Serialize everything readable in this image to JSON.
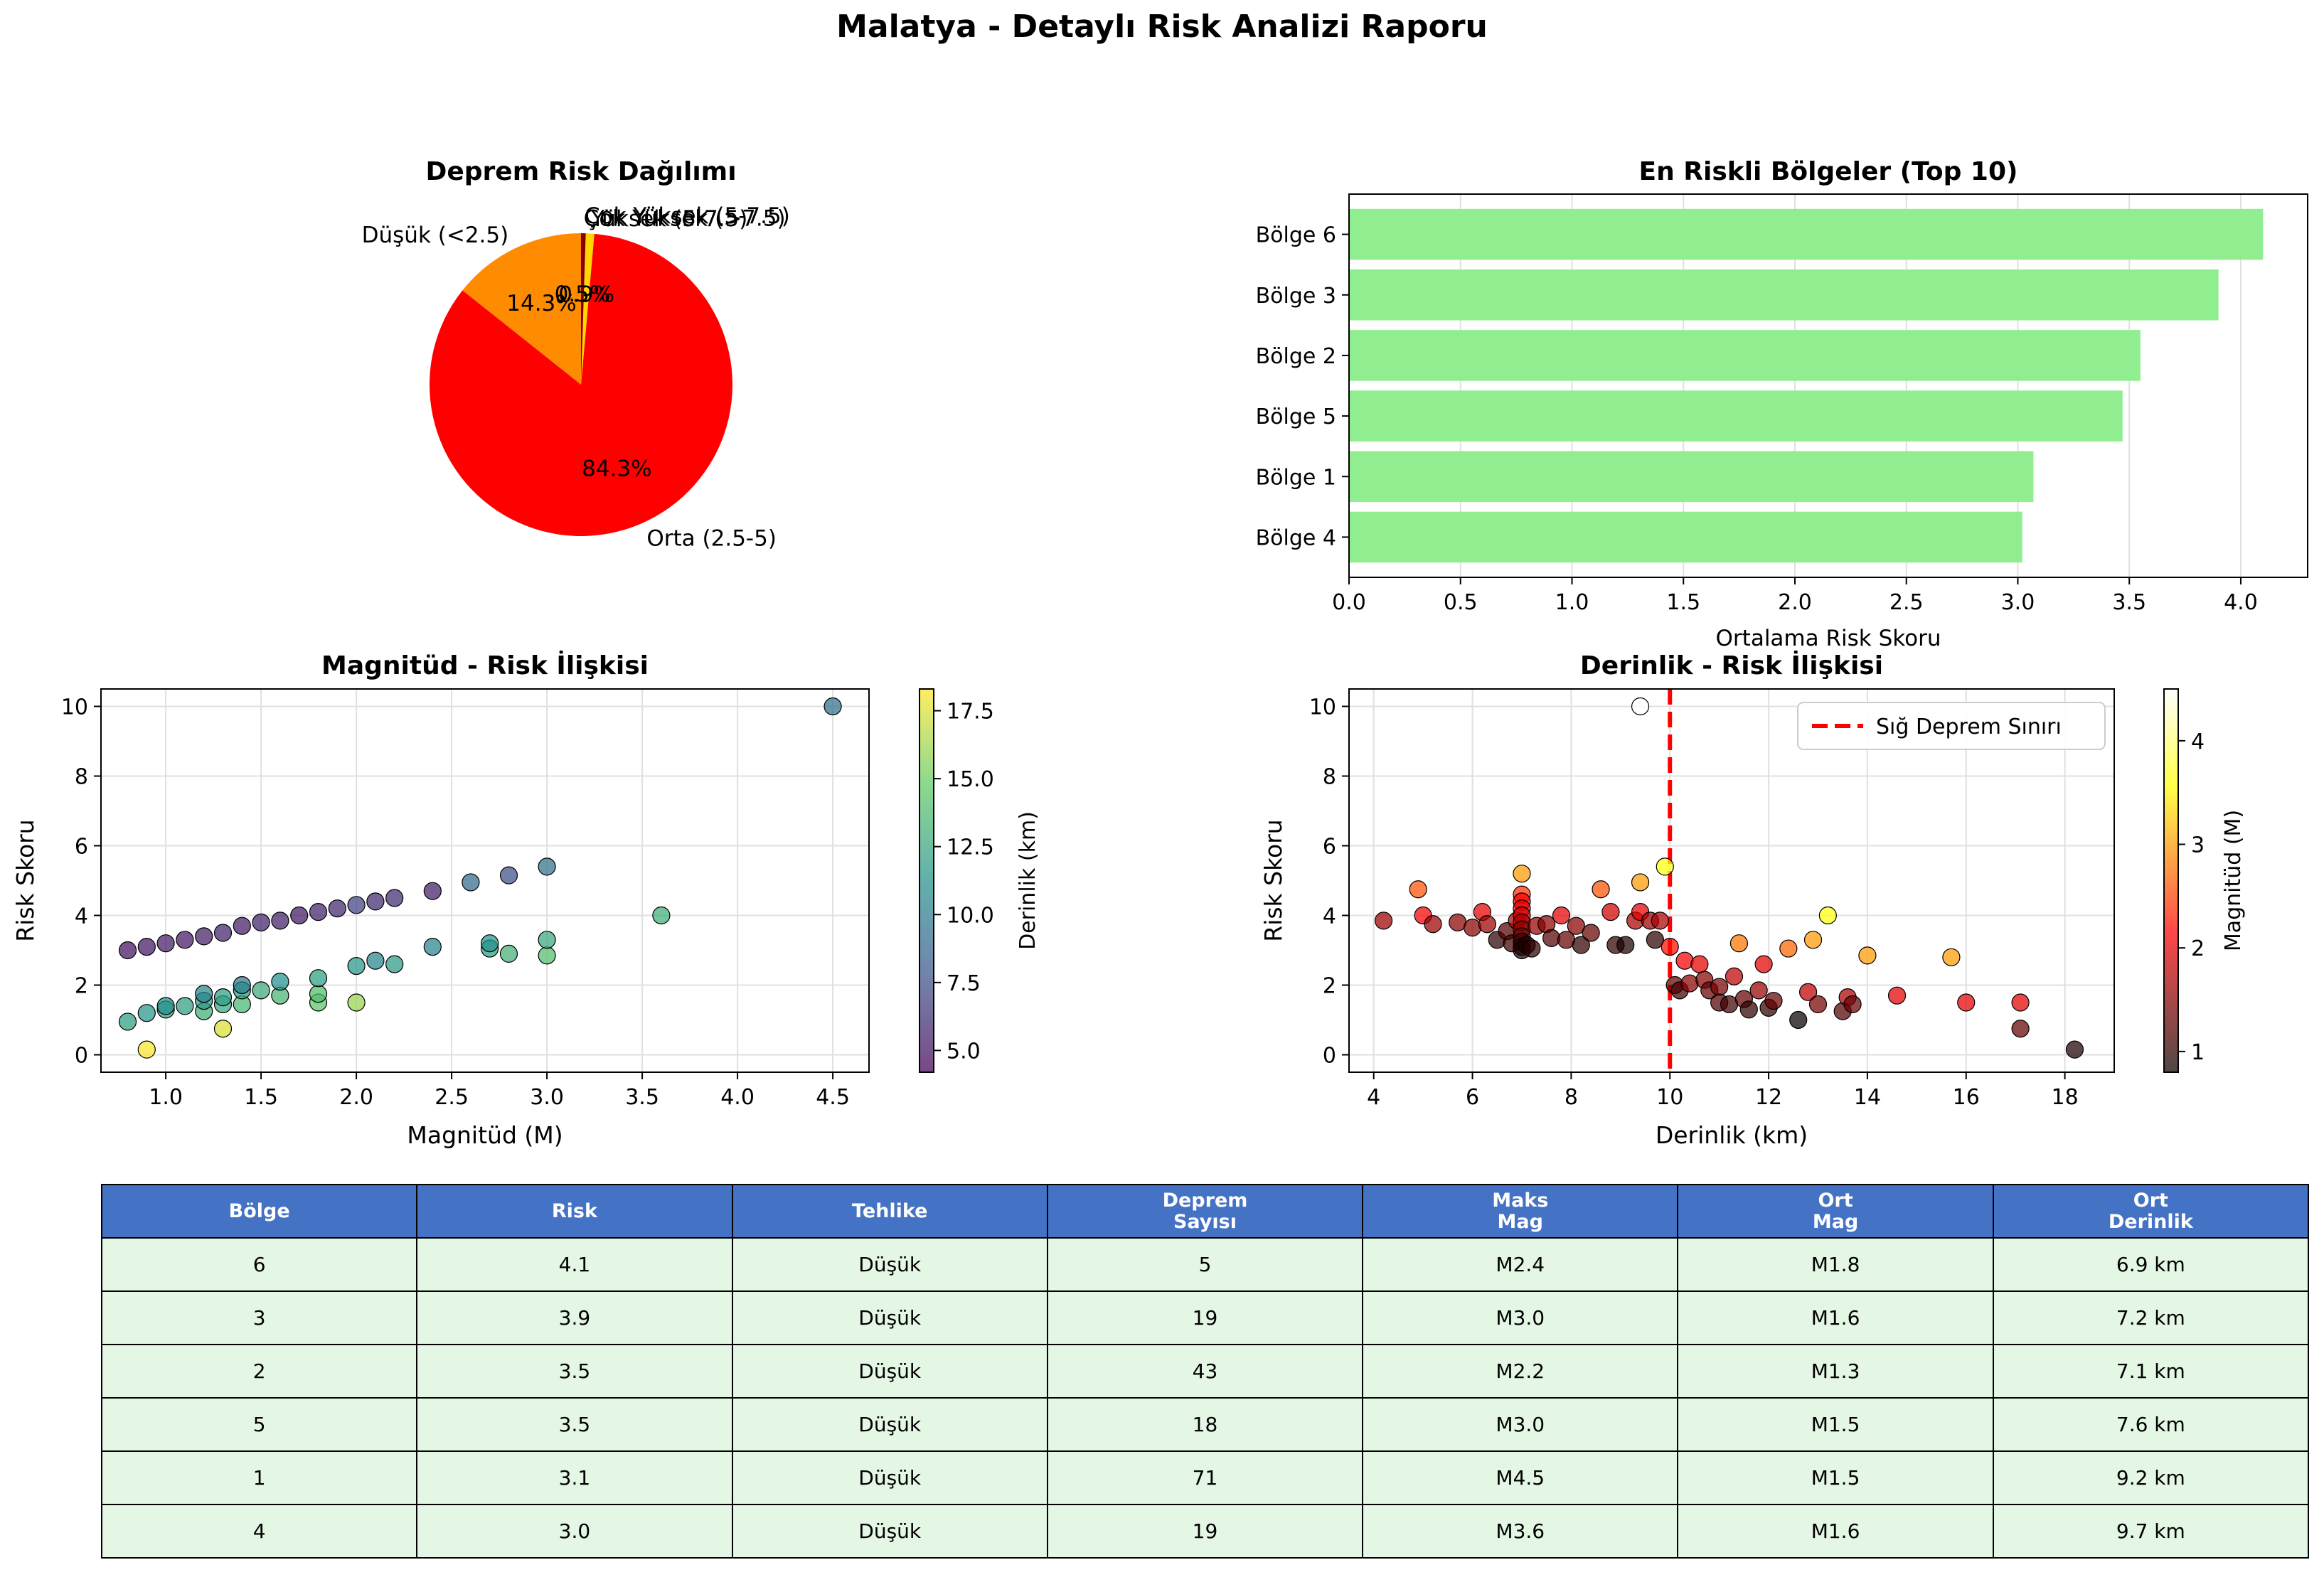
{
  "page_title": "Malatya - Detaylı Risk Analizi Raporu",
  "chart_data": [
    {
      "type": "pie",
      "title": "Deprem Risk Dağılımı",
      "slices": [
        {
          "label": "Düşük (<2.5)",
          "value": 14.3,
          "pct_label": "14.3%",
          "color": "#ff8c00"
        },
        {
          "label": "Orta (2.5-5)",
          "value": 84.3,
          "pct_label": "84.3%",
          "color": "#ff0000"
        },
        {
          "label": "Yüksek (5-7.5)",
          "value": 0.9,
          "pct_label": "0.9%",
          "color": "#ffd700"
        },
        {
          "label": "Çok Yüksek (>7.5)",
          "value": 0.5,
          "pct_label": "0.5%",
          "color": "#8b0000"
        }
      ],
      "labels_overlap_text": "Çok Yüksek (5-7.5)"
    },
    {
      "type": "bar",
      "orientation": "horizontal",
      "title": "En Riskli Bölgeler (Top 10)",
      "categories": [
        "Bölge 6",
        "Bölge 3",
        "Bölge 2",
        "Bölge 5",
        "Bölge 1",
        "Bölge 4"
      ],
      "values": [
        4.1,
        3.9,
        3.55,
        3.47,
        3.07,
        3.02
      ],
      "xlabel": "Ortalama Risk Skoru",
      "xlim": [
        0,
        4.3
      ],
      "xticks": [
        "0.0",
        "0.5",
        "1.0",
        "1.5",
        "2.0",
        "2.5",
        "3.0",
        "3.5",
        "4.0"
      ],
      "bar_color": "#90ee90",
      "grid": true
    },
    {
      "type": "scatter",
      "title": "Magnitüd - Risk İlişkisi",
      "xlabel": "Magnitüd (M)",
      "ylabel": "Risk Skoru",
      "xlim": [
        0.66,
        4.69
      ],
      "ylim": [
        -0.5,
        10.5
      ],
      "xticks": [
        "1.0",
        "1.5",
        "2.0",
        "2.5",
        "3.0",
        "3.5",
        "4.0",
        "4.5"
      ],
      "yticks": [
        "0",
        "2",
        "4",
        "6",
        "8",
        "10"
      ],
      "colorbar": {
        "label": "Derinlik (km)",
        "ticks": [
          "5.0",
          "7.5",
          "10.0",
          "12.5",
          "15.0",
          "17.5"
        ],
        "range": [
          4.2,
          18.3
        ],
        "colormap": "viridis"
      },
      "points": [
        {
          "x": 0.8,
          "y": 3.0,
          "c": 5.0
        },
        {
          "x": 0.9,
          "y": 3.1,
          "c": 5.2
        },
        {
          "x": 1.0,
          "y": 3.2,
          "c": 5.3
        },
        {
          "x": 1.1,
          "y": 3.3,
          "c": 5.1
        },
        {
          "x": 1.2,
          "y": 3.4,
          "c": 5.4
        },
        {
          "x": 1.3,
          "y": 3.5,
          "c": 5.6
        },
        {
          "x": 1.4,
          "y": 3.7,
          "c": 5.3
        },
        {
          "x": 1.5,
          "y": 3.8,
          "c": 5.7
        },
        {
          "x": 1.6,
          "y": 3.85,
          "c": 5.5
        },
        {
          "x": 1.7,
          "y": 4.0,
          "c": 5.2
        },
        {
          "x": 1.8,
          "y": 4.1,
          "c": 5.6
        },
        {
          "x": 1.9,
          "y": 4.2,
          "c": 5.8
        },
        {
          "x": 2.0,
          "y": 4.3,
          "c": 7.0
        },
        {
          "x": 2.1,
          "y": 4.4,
          "c": 5.9
        },
        {
          "x": 2.2,
          "y": 4.5,
          "c": 6.0
        },
        {
          "x": 2.4,
          "y": 4.7,
          "c": 5.4
        },
        {
          "x": 2.6,
          "y": 4.95,
          "c": 9.0
        },
        {
          "x": 2.8,
          "y": 5.15,
          "c": 7.5
        },
        {
          "x": 3.0,
          "y": 5.4,
          "c": 9.4
        },
        {
          "x": 4.5,
          "y": 10.0,
          "c": 9.4
        },
        {
          "x": 0.8,
          "y": 0.95,
          "c": 12.0
        },
        {
          "x": 0.9,
          "y": 1.2,
          "c": 11.5
        },
        {
          "x": 0.9,
          "y": 0.15,
          "c": 18.2
        },
        {
          "x": 1.0,
          "y": 1.3,
          "c": 12.3
        },
        {
          "x": 1.0,
          "y": 1.4,
          "c": 11.0
        },
        {
          "x": 1.1,
          "y": 1.4,
          "c": 12.0
        },
        {
          "x": 1.2,
          "y": 1.25,
          "c": 13.0
        },
        {
          "x": 1.2,
          "y": 1.55,
          "c": 11.8
        },
        {
          "x": 1.2,
          "y": 1.75,
          "c": 10.5
        },
        {
          "x": 1.3,
          "y": 1.45,
          "c": 12.6
        },
        {
          "x": 1.3,
          "y": 1.65,
          "c": 12.0
        },
        {
          "x": 1.3,
          "y": 0.75,
          "c": 17.5
        },
        {
          "x": 1.4,
          "y": 1.45,
          "c": 13.5
        },
        {
          "x": 1.4,
          "y": 1.85,
          "c": 12.0
        },
        {
          "x": 1.4,
          "y": 2.0,
          "c": 10.0
        },
        {
          "x": 1.5,
          "y": 1.85,
          "c": 12.8
        },
        {
          "x": 1.6,
          "y": 1.7,
          "c": 13.4
        },
        {
          "x": 1.6,
          "y": 2.1,
          "c": 11.2
        },
        {
          "x": 1.8,
          "y": 1.5,
          "c": 14.5
        },
        {
          "x": 1.8,
          "y": 1.75,
          "c": 14.0
        },
        {
          "x": 1.8,
          "y": 2.2,
          "c": 12.0
        },
        {
          "x": 2.0,
          "y": 1.5,
          "c": 16.0
        },
        {
          "x": 2.0,
          "y": 2.55,
          "c": 11.5
        },
        {
          "x": 2.1,
          "y": 2.7,
          "c": 10.5
        },
        {
          "x": 2.2,
          "y": 2.6,
          "c": 11.8
        },
        {
          "x": 2.4,
          "y": 3.1,
          "c": 10.5
        },
        {
          "x": 2.7,
          "y": 3.05,
          "c": 12.0
        },
        {
          "x": 2.7,
          "y": 3.2,
          "c": 11.2
        },
        {
          "x": 2.8,
          "y": 2.9,
          "c": 13.2
        },
        {
          "x": 3.0,
          "y": 2.85,
          "c": 14.0
        },
        {
          "x": 3.0,
          "y": 3.3,
          "c": 12.6
        },
        {
          "x": 3.6,
          "y": 4.0,
          "c": 13.0
        }
      ],
      "grid": true
    },
    {
      "type": "scatter",
      "title": "Derinlik - Risk İlişkisi",
      "xlabel": "Derinlik (km)",
      "ylabel": "Risk Skoru",
      "xlim": [
        3.5,
        19.0
      ],
      "ylim": [
        -0.5,
        10.5
      ],
      "xticks": [
        "4",
        "6",
        "8",
        "10",
        "12",
        "14",
        "16",
        "18"
      ],
      "yticks": [
        "0",
        "2",
        "4",
        "6",
        "8",
        "10"
      ],
      "colorbar": {
        "label": "Magnitüd (M)",
        "ticks": [
          "1",
          "2",
          "3",
          "4"
        ],
        "range": [
          0.8,
          4.5
        ],
        "colormap": "hot"
      },
      "reference_line": {
        "x": 10,
        "label": "Sığ Deprem Sınırı",
        "color": "#ff0000"
      },
      "points": [
        {
          "x": 4.2,
          "y": 3.85,
          "c": 1.6
        },
        {
          "x": 4.9,
          "y": 4.75,
          "c": 2.6
        },
        {
          "x": 5.0,
          "y": 4.0,
          "c": 2.1
        },
        {
          "x": 5.2,
          "y": 3.75,
          "c": 1.6
        },
        {
          "x": 5.7,
          "y": 3.8,
          "c": 1.5
        },
        {
          "x": 6.0,
          "y": 3.65,
          "c": 1.5
        },
        {
          "x": 6.2,
          "y": 4.1,
          "c": 2.0
        },
        {
          "x": 6.3,
          "y": 3.75,
          "c": 1.6
        },
        {
          "x": 6.5,
          "y": 3.3,
          "c": 1.0
        },
        {
          "x": 6.7,
          "y": 3.55,
          "c": 1.2
        },
        {
          "x": 6.8,
          "y": 3.2,
          "c": 1.1
        },
        {
          "x": 6.9,
          "y": 3.85,
          "c": 1.7
        },
        {
          "x": 7.0,
          "y": 5.2,
          "c": 3.0
        },
        {
          "x": 7.0,
          "y": 4.6,
          "c": 2.4
        },
        {
          "x": 7.0,
          "y": 4.4,
          "c": 2.1
        },
        {
          "x": 7.0,
          "y": 4.2,
          "c": 2.0
        },
        {
          "x": 7.0,
          "y": 4.0,
          "c": 1.9
        },
        {
          "x": 7.0,
          "y": 3.8,
          "c": 1.7
        },
        {
          "x": 7.0,
          "y": 3.6,
          "c": 1.5
        },
        {
          "x": 7.0,
          "y": 3.4,
          "c": 1.3
        },
        {
          "x": 7.0,
          "y": 3.25,
          "c": 1.1
        },
        {
          "x": 7.0,
          "y": 3.1,
          "c": 1.0
        },
        {
          "x": 7.0,
          "y": 3.0,
          "c": 0.9
        },
        {
          "x": 7.1,
          "y": 3.15,
          "c": 0.9
        },
        {
          "x": 7.2,
          "y": 3.05,
          "c": 1.0
        },
        {
          "x": 7.3,
          "y": 3.7,
          "c": 1.6
        },
        {
          "x": 7.5,
          "y": 3.75,
          "c": 1.5
        },
        {
          "x": 7.6,
          "y": 3.35,
          "c": 1.2
        },
        {
          "x": 7.8,
          "y": 4.0,
          "c": 2.0
        },
        {
          "x": 7.9,
          "y": 3.3,
          "c": 1.3
        },
        {
          "x": 8.1,
          "y": 3.7,
          "c": 1.5
        },
        {
          "x": 8.2,
          "y": 3.15,
          "c": 1.0
        },
        {
          "x": 8.4,
          "y": 3.5,
          "c": 1.3
        },
        {
          "x": 8.6,
          "y": 4.75,
          "c": 2.6
        },
        {
          "x": 8.8,
          "y": 4.1,
          "c": 1.9
        },
        {
          "x": 8.9,
          "y": 3.15,
          "c": 1.0
        },
        {
          "x": 9.1,
          "y": 3.15,
          "c": 0.9
        },
        {
          "x": 9.3,
          "y": 3.85,
          "c": 1.7
        },
        {
          "x": 9.4,
          "y": 10.0,
          "c": 4.5
        },
        {
          "x": 9.4,
          "y": 4.1,
          "c": 2.0
        },
        {
          "x": 9.4,
          "y": 4.95,
          "c": 3.0
        },
        {
          "x": 9.6,
          "y": 3.85,
          "c": 1.6
        },
        {
          "x": 9.7,
          "y": 3.3,
          "c": 1.0
        },
        {
          "x": 9.8,
          "y": 3.85,
          "c": 1.7
        },
        {
          "x": 9.9,
          "y": 5.4,
          "c": 3.6
        },
        {
          "x": 10.0,
          "y": 3.1,
          "c": 2.2
        },
        {
          "x": 10.1,
          "y": 2.0,
          "c": 1.3
        },
        {
          "x": 10.2,
          "y": 1.85,
          "c": 1.1
        },
        {
          "x": 10.3,
          "y": 2.7,
          "c": 2.1
        },
        {
          "x": 10.4,
          "y": 2.05,
          "c": 1.5
        },
        {
          "x": 10.6,
          "y": 2.6,
          "c": 2.0
        },
        {
          "x": 10.7,
          "y": 2.15,
          "c": 1.5
        },
        {
          "x": 10.8,
          "y": 1.85,
          "c": 1.3
        },
        {
          "x": 11.0,
          "y": 1.95,
          "c": 1.4
        },
        {
          "x": 11.0,
          "y": 1.5,
          "c": 1.2
        },
        {
          "x": 11.2,
          "y": 1.45,
          "c": 1.1
        },
        {
          "x": 11.3,
          "y": 2.25,
          "c": 1.8
        },
        {
          "x": 11.4,
          "y": 3.2,
          "c": 2.8
        },
        {
          "x": 11.5,
          "y": 1.6,
          "c": 1.3
        },
        {
          "x": 11.6,
          "y": 1.3,
          "c": 1.0
        },
        {
          "x": 11.8,
          "y": 1.85,
          "c": 1.6
        },
        {
          "x": 11.9,
          "y": 2.6,
          "c": 2.0
        },
        {
          "x": 12.0,
          "y": 1.35,
          "c": 1.0
        },
        {
          "x": 12.1,
          "y": 1.55,
          "c": 1.3
        },
        {
          "x": 12.4,
          "y": 3.05,
          "c": 2.7
        },
        {
          "x": 12.6,
          "y": 1.0,
          "c": 0.8
        },
        {
          "x": 12.8,
          "y": 1.8,
          "c": 1.8
        },
        {
          "x": 12.9,
          "y": 3.3,
          "c": 3.0
        },
        {
          "x": 13.0,
          "y": 1.45,
          "c": 1.4
        },
        {
          "x": 13.2,
          "y": 4.0,
          "c": 3.6
        },
        {
          "x": 13.5,
          "y": 1.25,
          "c": 1.2
        },
        {
          "x": 13.6,
          "y": 1.65,
          "c": 1.7
        },
        {
          "x": 13.7,
          "y": 1.45,
          "c": 1.3
        },
        {
          "x": 14.0,
          "y": 2.85,
          "c": 3.0
        },
        {
          "x": 14.6,
          "y": 1.7,
          "c": 2.0
        },
        {
          "x": 15.7,
          "y": 2.8,
          "c": 3.0
        },
        {
          "x": 16.0,
          "y": 1.5,
          "c": 2.0
        },
        {
          "x": 17.1,
          "y": 1.5,
          "c": 2.0
        },
        {
          "x": 17.1,
          "y": 0.75,
          "c": 1.3
        },
        {
          "x": 18.2,
          "y": 0.15,
          "c": 0.9
        }
      ],
      "grid": true
    },
    {
      "type": "table",
      "headers": [
        "Bölge",
        "Risk",
        "Tehlike",
        "Deprem\nSayısı",
        "Maks\nMag",
        "Ort\nMag",
        "Ort\nDerinlik"
      ],
      "rows": [
        [
          "6",
          "4.1",
          "Düşük",
          "5",
          "M2.4",
          "M1.8",
          "6.9 km"
        ],
        [
          "3",
          "3.9",
          "Düşük",
          "19",
          "M3.0",
          "M1.6",
          "7.2 km"
        ],
        [
          "2",
          "3.5",
          "Düşük",
          "43",
          "M2.2",
          "M1.3",
          "7.1 km"
        ],
        [
          "5",
          "3.5",
          "Düşük",
          "18",
          "M3.0",
          "M1.5",
          "7.6 km"
        ],
        [
          "1",
          "3.1",
          "Düşük",
          "71",
          "M4.5",
          "M1.5",
          "9.2 km"
        ],
        [
          "4",
          "3.0",
          "Düşük",
          "19",
          "M3.6",
          "M1.6",
          "9.7 km"
        ]
      ],
      "header_color": "#4472c4",
      "cell_color": "#e4f6e4"
    }
  ]
}
